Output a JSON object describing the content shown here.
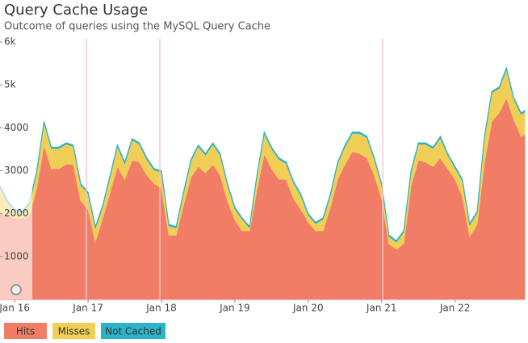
{
  "chart_data": {
    "type": "stacked_area",
    "title": "Query Cache Usage",
    "subtitle": "Outcome of queries using the MySQL Query Cache",
    "x": [
      15.8,
      15.9,
      16.0,
      16.1,
      16.2,
      16.3,
      16.4,
      16.5,
      16.6,
      16.7,
      16.8,
      16.9,
      17.0,
      17.1,
      17.2,
      17.3,
      17.4,
      17.5,
      17.6,
      17.7,
      17.8,
      17.9,
      18.0,
      18.1,
      18.2,
      18.3,
      18.4,
      18.5,
      18.6,
      18.7,
      18.8,
      18.9,
      19.0,
      19.1,
      19.2,
      19.3,
      19.4,
      19.5,
      19.6,
      19.7,
      19.8,
      19.9,
      20.0,
      20.1,
      20.2,
      20.3,
      20.4,
      20.5,
      20.6,
      20.7,
      20.8,
      20.9,
      21.0,
      21.1,
      21.2,
      21.3,
      21.4,
      21.5,
      21.6,
      21.7,
      21.8,
      21.9,
      22.0,
      22.1,
      22.2,
      22.3,
      22.4,
      22.5,
      22.6,
      22.7,
      22.8,
      22.9,
      22.95
    ],
    "series": [
      {
        "name": "Hits",
        "color": "#f27d67",
        "values": [
          2000,
          1950,
          1900,
          1900,
          1950,
          2600,
          3600,
          3050,
          3050,
          3150,
          3150,
          2300,
          2100,
          1350,
          1900,
          2500,
          3100,
          2800,
          3250,
          3200,
          2900,
          2700,
          2600,
          1500,
          1500,
          2200,
          2850,
          3100,
          2950,
          3150,
          2900,
          2300,
          1850,
          1600,
          1600,
          2550,
          3400,
          3050,
          2800,
          2800,
          2350,
          2100,
          1800,
          1600,
          1600,
          2150,
          2800,
          3150,
          3450,
          3400,
          3300,
          2900,
          2350,
          1300,
          1170,
          1300,
          2650,
          3250,
          3200,
          3100,
          3300,
          3050,
          2800,
          2400,
          1470,
          1750,
          3200,
          4150,
          4350,
          4700,
          4200,
          3800,
          3850
        ]
      },
      {
        "name": "Misses",
        "color": "#f1cf56",
        "values": [
          620,
          320,
          170,
          120,
          270,
          370,
          520,
          470,
          470,
          470,
          420,
          370,
          370,
          320,
          270,
          370,
          470,
          370,
          470,
          420,
          370,
          320,
          370,
          220,
          170,
          270,
          370,
          470,
          420,
          470,
          470,
          370,
          270,
          270,
          70,
          320,
          470,
          470,
          470,
          370,
          370,
          320,
          170,
          170,
          270,
          270,
          370,
          420,
          420,
          470,
          470,
          370,
          320,
          170,
          170,
          270,
          320,
          370,
          420,
          420,
          470,
          320,
          270,
          370,
          270,
          270,
          570,
          670,
          570,
          670,
          470,
          520,
          520
        ]
      },
      {
        "name": "Not Cached",
        "color": "#2bb3c9",
        "values": [
          30,
          30,
          30,
          30,
          30,
          30,
          30,
          30,
          30,
          30,
          30,
          30,
          30,
          30,
          30,
          30,
          30,
          30,
          30,
          30,
          30,
          30,
          30,
          30,
          30,
          30,
          30,
          30,
          30,
          30,
          30,
          30,
          30,
          30,
          30,
          30,
          30,
          30,
          30,
          30,
          30,
          30,
          30,
          30,
          30,
          30,
          30,
          30,
          30,
          30,
          30,
          30,
          30,
          30,
          30,
          30,
          30,
          30,
          30,
          30,
          30,
          30,
          30,
          30,
          30,
          30,
          30,
          30,
          30,
          30,
          30,
          30,
          30
        ]
      }
    ],
    "xlim": [
      15.8,
      22.95
    ],
    "xticks": [
      {
        "value": 16,
        "label": "Jan 16"
      },
      {
        "value": 17,
        "label": "Jan 17"
      },
      {
        "value": 18,
        "label": "Jan 18"
      },
      {
        "value": 19,
        "label": "Jan 19"
      },
      {
        "value": 20,
        "label": "Jan 20"
      },
      {
        "value": 21,
        "label": "Jan 21"
      },
      {
        "value": 22,
        "label": "Jan 22"
      }
    ],
    "ylim": [
      0,
      6000
    ],
    "yticks": [
      1000,
      2000,
      3000,
      4000,
      {
        "value": 5000,
        "label": "5k"
      },
      {
        "value": 6000,
        "label": "6k"
      }
    ]
  }
}
